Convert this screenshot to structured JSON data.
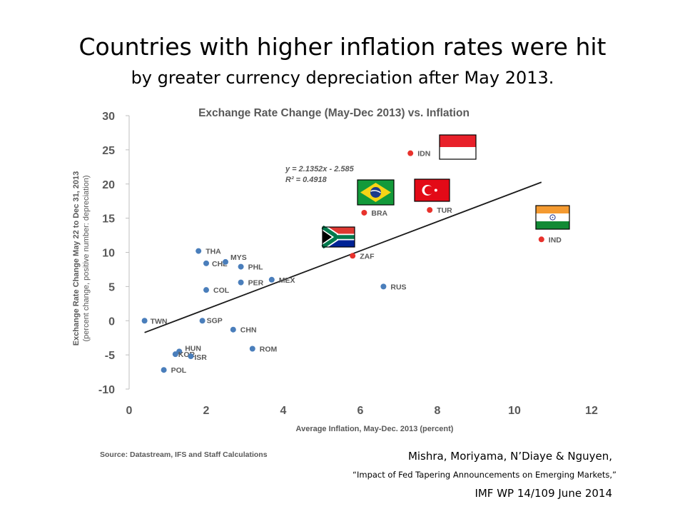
{
  "slide": {
    "title_line1": "Countries with higher inflation rates were hit",
    "title_line2": "by greater currency depreciation after May 2013."
  },
  "chart_data": {
    "type": "scatter",
    "title": "Exchange Rate Change (May-Dec 2013) vs. Inflation",
    "xlabel": "Average Inflation, May-Dec. 2013 (percent)",
    "ylabel_line1": "Exchange Rate Change May 22 to Dec 31, 2013",
    "ylabel_line2": "(percent change, positive number: depreciation)",
    "xlim": [
      0,
      12
    ],
    "ylim": [
      -10,
      30
    ],
    "x_ticks": [
      0,
      2,
      4,
      6,
      8,
      10,
      12
    ],
    "y_ticks": [
      -10,
      -5,
      0,
      5,
      10,
      15,
      20,
      25,
      30
    ],
    "grid": false,
    "source": "Source: Datastream, IFS and Staff Calculations",
    "trendline": {
      "equation": "y = 2.1352x - 2.585",
      "r2": "R² = 0.4918",
      "slope": 2.1352,
      "intercept": -2.585,
      "x_range": [
        0.4,
        10.7
      ]
    },
    "colors": {
      "default": "#4a7ebb",
      "highlight": "#e8322c",
      "trendline": "#1a1a1a",
      "axis_text": "#595959"
    },
    "points": [
      {
        "label": "IDN",
        "x": 7.3,
        "y": 24.5,
        "highlight": true
      },
      {
        "label": "BRA",
        "x": 6.1,
        "y": 15.8,
        "highlight": true
      },
      {
        "label": "TUR",
        "x": 7.8,
        "y": 16.2,
        "highlight": true
      },
      {
        "label": "IND",
        "x": 10.7,
        "y": 11.9,
        "highlight": true
      },
      {
        "label": "ZAF",
        "x": 5.8,
        "y": 9.5,
        "highlight": true
      },
      {
        "label": "THA",
        "x": 1.8,
        "y": 10.2,
        "highlight": false
      },
      {
        "label": "CHL",
        "x": 2.0,
        "y": 8.4,
        "highlight": false
      },
      {
        "label": "MYS",
        "x": 2.5,
        "y": 8.6,
        "highlight": false
      },
      {
        "label": "PHL",
        "x": 2.9,
        "y": 7.9,
        "highlight": false
      },
      {
        "label": "PER",
        "x": 2.9,
        "y": 5.6,
        "highlight": false
      },
      {
        "label": "MEX",
        "x": 3.7,
        "y": 6.0,
        "highlight": false
      },
      {
        "label": "COL",
        "x": 2.0,
        "y": 4.5,
        "highlight": false
      },
      {
        "label": "RUS",
        "x": 6.6,
        "y": 5.0,
        "highlight": false
      },
      {
        "label": "TWN",
        "x": 0.4,
        "y": 0.0,
        "highlight": false
      },
      {
        "label": "SGP",
        "x": 1.9,
        "y": 0.0,
        "highlight": false
      },
      {
        "label": "CHN",
        "x": 2.7,
        "y": -1.3,
        "highlight": false
      },
      {
        "label": "HUN",
        "x": 1.3,
        "y": -4.5,
        "highlight": false
      },
      {
        "label": "KOR",
        "x": 1.2,
        "y": -4.9,
        "highlight": false
      },
      {
        "label": "ISR",
        "x": 1.6,
        "y": -5.2,
        "highlight": false
      },
      {
        "label": "ROM",
        "x": 3.2,
        "y": -4.1,
        "highlight": false
      },
      {
        "label": "POL",
        "x": 0.9,
        "y": -7.2,
        "highlight": false
      }
    ]
  },
  "flags": [
    {
      "country": "IDN",
      "icon": "indonesia-flag-icon"
    },
    {
      "country": "BRA",
      "icon": "brazil-flag-icon"
    },
    {
      "country": "TUR",
      "icon": "turkey-flag-icon"
    },
    {
      "country": "IND",
      "icon": "india-flag-icon"
    },
    {
      "country": "ZAF",
      "icon": "south-africa-flag-icon"
    }
  ],
  "citation": {
    "authors": "Mishra, Moriyama, N’Diaye & Nguyen,",
    "paper": "“Impact of Fed Tapering Announcements on Emerging Markets,”",
    "imf": "IMF WP 14/109 June 2014"
  }
}
